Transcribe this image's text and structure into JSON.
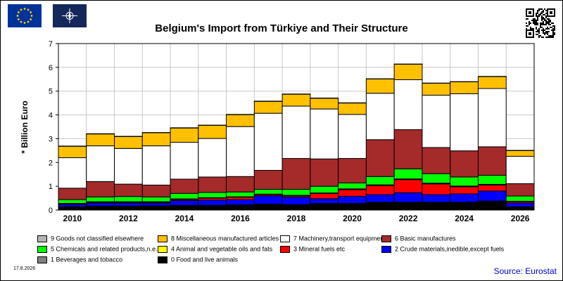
{
  "header": {
    "eu_flag_icon": "eu-flag-icon",
    "nato_flag_icon": "nato-flag-icon",
    "qr_icon": "qr-code-icon"
  },
  "chart_data": {
    "type": "bar",
    "stacked": true,
    "title": "Belgium's Import from Türkiye and Their Structure",
    "ylabel": "* Billion Euro",
    "xlabel": "",
    "ylim": [
      0,
      7
    ],
    "yticks": [
      "0",
      "1",
      "2",
      "3",
      "4",
      "5",
      "6",
      "7"
    ],
    "grid": true,
    "legend_position": "bottom",
    "categories": [
      "2010",
      "2011",
      "2012",
      "2013",
      "2014",
      "2015",
      "2016",
      "2017",
      "2018",
      "2019",
      "2020",
      "2021",
      "2022",
      "2023",
      "2024",
      "2025",
      "2026"
    ],
    "xtick_labels": [
      "2010",
      "",
      "2012",
      "",
      "2014",
      "",
      "2016",
      "",
      "2018",
      "",
      "2020",
      "",
      "2022",
      "",
      "2024",
      "",
      "2026"
    ],
    "series": [
      {
        "name": "0 Food and live animals",
        "color": "#000000",
        "values": [
          0.12,
          0.15,
          0.15,
          0.16,
          0.18,
          0.18,
          0.2,
          0.22,
          0.2,
          0.25,
          0.25,
          0.3,
          0.3,
          0.3,
          0.3,
          0.35,
          0.12
        ]
      },
      {
        "name": "1 Beverages and tobacco",
        "color": "#808080",
        "values": [
          0.02,
          0.02,
          0.02,
          0.02,
          0.02,
          0.02,
          0.02,
          0.03,
          0.03,
          0.03,
          0.03,
          0.03,
          0.03,
          0.03,
          0.03,
          0.03,
          0.02
        ]
      },
      {
        "name": "2 Crude materials,inedible,except fuels",
        "color": "#0000ff",
        "values": [
          0.1,
          0.13,
          0.13,
          0.12,
          0.2,
          0.22,
          0.22,
          0.35,
          0.32,
          0.2,
          0.3,
          0.32,
          0.4,
          0.32,
          0.35,
          0.42,
          0.16
        ]
      },
      {
        "name": "3 Mineral fuels etc",
        "color": "#ff0000",
        "values": [
          0.02,
          0.03,
          0.03,
          0.03,
          0.05,
          0.08,
          0.1,
          0.05,
          0.05,
          0.22,
          0.28,
          0.38,
          0.55,
          0.45,
          0.3,
          0.25,
          0.06
        ]
      },
      {
        "name": "4 Animal and vegetable oils and fats",
        "color": "#ffff00",
        "values": [
          0.02,
          0.02,
          0.02,
          0.02,
          0.02,
          0.02,
          0.02,
          0.02,
          0.02,
          0.02,
          0.03,
          0.03,
          0.03,
          0.03,
          0.03,
          0.03,
          0.01
        ]
      },
      {
        "name": "5 Chemicals and related products,n.e.s.",
        "color": "#00ff00",
        "values": [
          0.16,
          0.2,
          0.22,
          0.2,
          0.23,
          0.22,
          0.2,
          0.2,
          0.25,
          0.28,
          0.25,
          0.35,
          0.42,
          0.4,
          0.38,
          0.38,
          0.22
        ]
      },
      {
        "name": "6 Basic manufactures",
        "color": "#a52a2a",
        "values": [
          0.48,
          0.65,
          0.52,
          0.5,
          0.6,
          0.65,
          0.65,
          0.8,
          1.3,
          1.15,
          1.03,
          1.55,
          1.65,
          1.1,
          1.1,
          1.2,
          0.52
        ]
      },
      {
        "name": "7 Machinery,transport equipment",
        "color": "#ffffff",
        "values": [
          1.28,
          1.5,
          1.5,
          1.65,
          1.55,
          1.62,
          2.1,
          2.4,
          2.2,
          2.1,
          1.85,
          1.95,
          2.1,
          2.2,
          2.4,
          2.45,
          1.15
        ]
      },
      {
        "name": "8 Miscellaneous manufactured articles",
        "color": "#ffc000",
        "values": [
          0.48,
          0.5,
          0.5,
          0.55,
          0.6,
          0.55,
          0.5,
          0.5,
          0.5,
          0.45,
          0.48,
          0.6,
          0.65,
          0.5,
          0.5,
          0.5,
          0.24
        ]
      },
      {
        "name": "9 Goods not classified elsewhere",
        "color": "#b4b4b4",
        "values": [
          0.01,
          0.01,
          0.01,
          0.01,
          0.01,
          0.01,
          0.01,
          0.01,
          0.01,
          0.01,
          0.01,
          0.01,
          0.01,
          0.01,
          0.01,
          0.01,
          0.01
        ]
      }
    ]
  },
  "legend_rows": [
    [
      {
        "series_index": 9
      },
      {
        "series_index": 8
      },
      {
        "series_index": 7
      },
      {
        "series_index": 6
      }
    ],
    [
      {
        "series_index": 5
      },
      {
        "series_index": 4
      },
      {
        "series_index": 3
      },
      {
        "series_index": 2
      }
    ],
    [
      {
        "series_index": 1
      },
      {
        "series_index": 0
      }
    ]
  ],
  "footer": {
    "date": "17.8.2026",
    "source": "Source: Eurostat"
  }
}
